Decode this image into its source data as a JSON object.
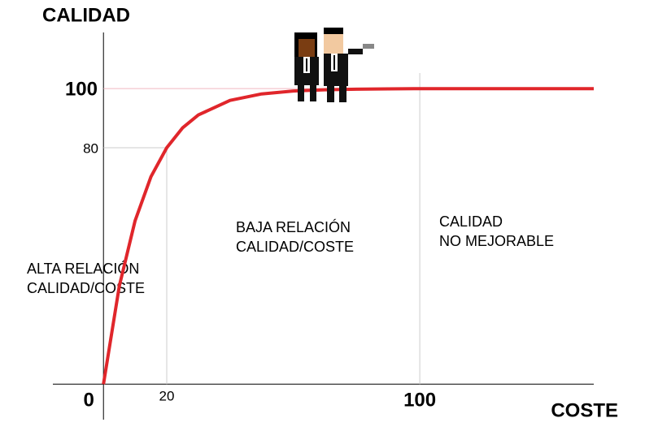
{
  "chart_data": {
    "type": "line",
    "y_label": "CALIDAD",
    "x_label": "COSTE",
    "x": [
      0,
      5,
      10,
      15,
      20,
      25,
      30,
      40,
      50,
      60,
      70,
      80,
      90,
      100,
      155
    ],
    "series": [
      {
        "name": "Calidad",
        "color": "#e0262b",
        "values": [
          0,
          33.2,
          55.3,
          70.2,
          80,
          86.7,
          91.1,
          96.0,
          98.2,
          99.2,
          99.6,
          99.8,
          99.9,
          100,
          100
        ]
      }
    ],
    "xlim": [
      -16,
      155
    ],
    "ylim": [
      -12,
      119
    ],
    "xticks": [
      0,
      20,
      100
    ],
    "yticks": [
      80,
      100
    ],
    "annotations": [
      [
        "ALTA RELACIÓN",
        "CALIDAD/COSTE"
      ],
      [
        "BAJA RELACIÓN",
        "CALIDAD/COSTE"
      ],
      [
        "CALIDAD",
        "NO MEJORABLE"
      ]
    ]
  }
}
